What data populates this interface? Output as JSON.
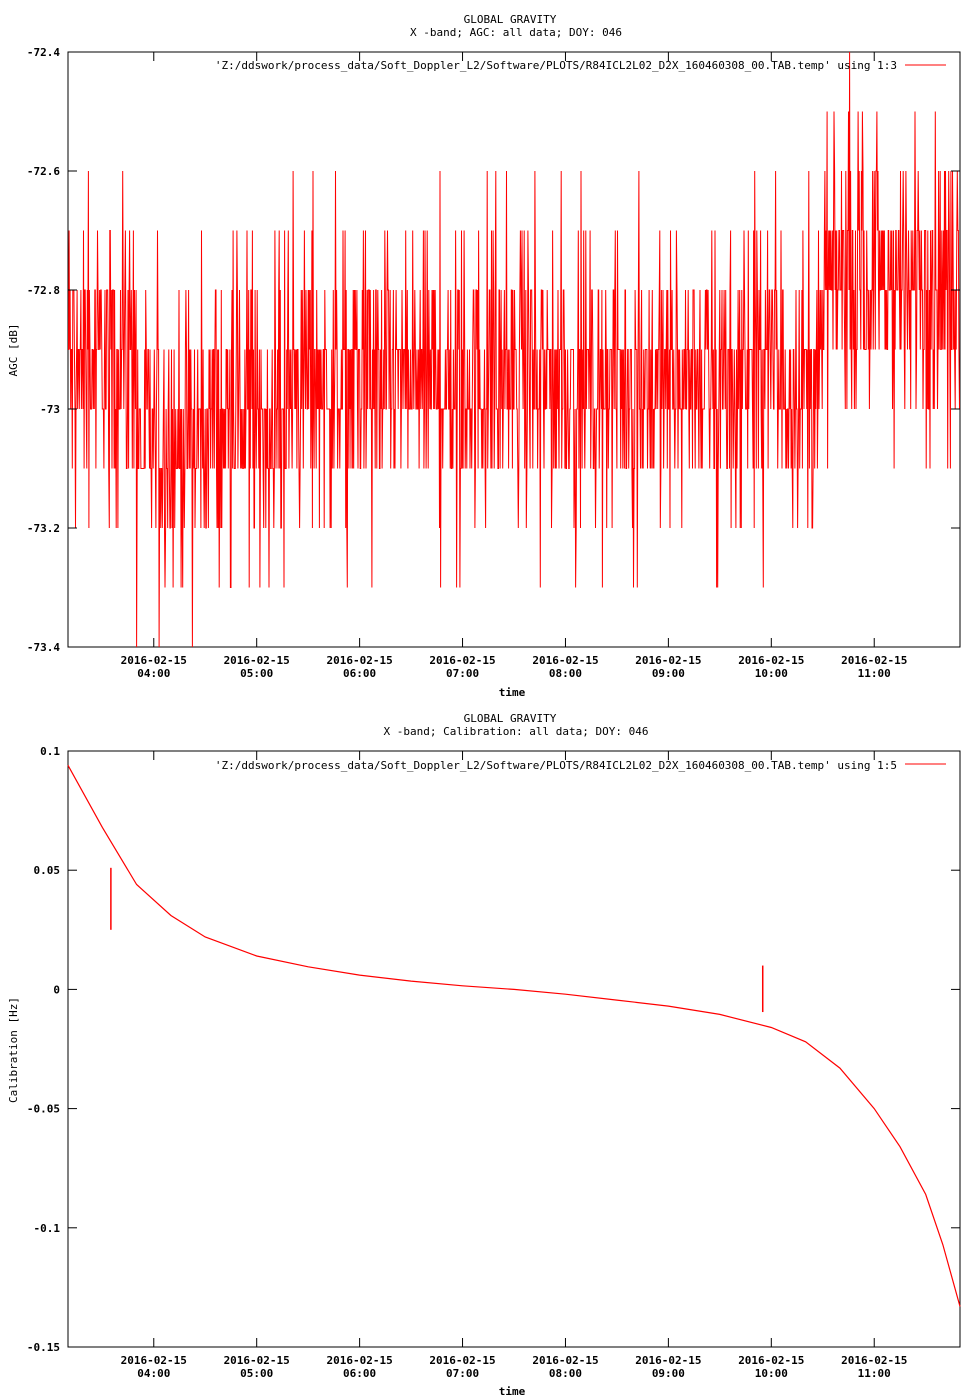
{
  "chart_data": [
    {
      "type": "line",
      "title": "GLOBAL GRAVITY",
      "subtitle": "X -band; AGC: all data; DOY: 046",
      "xlabel": "time",
      "ylabel": "AGC [dB]",
      "ylim": [
        -73.4,
        -72.4
      ],
      "yticks": [
        "-72.4",
        "-72.6",
        "-72.8",
        "-73",
        "-73.2",
        "-73.4"
      ],
      "ytick_values": [
        -72.4,
        -72.6,
        -72.8,
        -73.0,
        -73.2,
        -73.4
      ],
      "xlim": [
        "2016-02-15 03:10",
        "2016-02-15 11:50"
      ],
      "xtick_dates": [
        "2016-02-15",
        "2016-02-15",
        "2016-02-15",
        "2016-02-15",
        "2016-02-15",
        "2016-02-15",
        "2016-02-15",
        "2016-02-15"
      ],
      "xtick_times": [
        "04:00",
        "05:00",
        "06:00",
        "07:00",
        "08:00",
        "09:00",
        "10:00",
        "11:00"
      ],
      "grid": false,
      "legend_position": "top-right",
      "series": [
        {
          "name": "'Z:/ddswork/process_data/Soft_Doppler_L2/Software/PLOTS/R84ICL2L02_D2X_160460308_00.TAB.temp' using 1:3",
          "color": "#ff0000",
          "value_step": 0.1,
          "segments": [
            {
              "x": [
                "03:10",
                "03:50"
              ],
              "center": -72.92,
              "low": -73.2,
              "high": -72.6
            },
            {
              "x": [
                "03:50",
                "04:30"
              ],
              "center": -73.05,
              "low": -73.4,
              "high": -72.7
            },
            {
              "x": [
                "04:30",
                "05:20"
              ],
              "center": -73.02,
              "low": -73.3,
              "high": -72.7
            },
            {
              "x": [
                "05:20",
                "10:30"
              ],
              "center": -72.95,
              "low": -73.3,
              "high": -72.6
            },
            {
              "x": [
                "10:30",
                "11:50"
              ],
              "center": -72.78,
              "low": -73.1,
              "high": -72.4
            }
          ]
        }
      ]
    },
    {
      "type": "line",
      "title": "GLOBAL GRAVITY",
      "subtitle": "X -band; Calibration: all data; DOY: 046",
      "xlabel": "time",
      "ylabel": "Calibration [Hz]",
      "ylim": [
        -0.15,
        0.1
      ],
      "yticks": [
        "0.1",
        "0.05",
        "0",
        "-0.05",
        "-0.1",
        "-0.15"
      ],
      "ytick_values": [
        0.1,
        0.05,
        0.0,
        -0.05,
        -0.1,
        -0.15
      ],
      "xlim": [
        "2016-02-15 03:10",
        "2016-02-15 11:50"
      ],
      "xtick_dates": [
        "2016-02-15",
        "2016-02-15",
        "2016-02-15",
        "2016-02-15",
        "2016-02-15",
        "2016-02-15",
        "2016-02-15",
        "2016-02-15"
      ],
      "xtick_times": [
        "04:00",
        "05:00",
        "06:00",
        "07:00",
        "08:00",
        "09:00",
        "10:00",
        "11:00"
      ],
      "grid": false,
      "legend_position": "top-right",
      "series": [
        {
          "name": "'Z:/ddswork/process_data/Soft_Doppler_L2/Software/PLOTS/R84ICL2L02_D2X_160460308_00.TAB.temp' using 1:5",
          "color": "#ff0000",
          "x": [
            "03:10",
            "03:30",
            "03:50",
            "04:10",
            "04:30",
            "05:00",
            "05:30",
            "06:00",
            "06:30",
            "07:00",
            "07:30",
            "08:00",
            "08:30",
            "09:00",
            "09:30",
            "10:00",
            "10:20",
            "10:40",
            "11:00",
            "11:15",
            "11:30",
            "11:40",
            "11:50"
          ],
          "y": [
            0.094,
            0.068,
            0.044,
            0.031,
            0.022,
            0.014,
            0.0095,
            0.006,
            0.0035,
            0.0015,
            0.0,
            -0.002,
            -0.0045,
            -0.007,
            -0.0105,
            -0.016,
            -0.022,
            -0.033,
            -0.05,
            -0.066,
            -0.086,
            -0.107,
            -0.133
          ],
          "spikes": [
            {
              "x": "03:35",
              "from": 0.051,
              "to": 0.025
            },
            {
              "x": "09:55",
              "from": -0.0095,
              "to": 0.01
            }
          ]
        }
      ]
    }
  ]
}
